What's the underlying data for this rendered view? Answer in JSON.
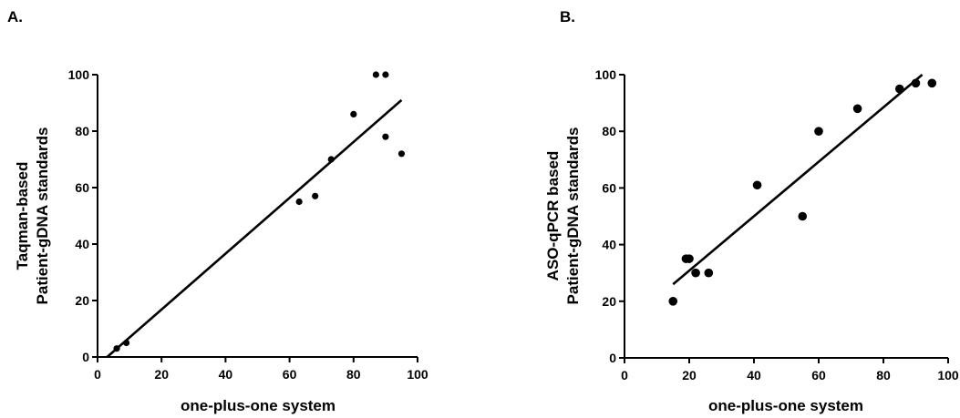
{
  "chart_data": [
    {
      "type": "scatter",
      "panel_label": "A.",
      "xlabel": "one-plus-one system",
      "ylabel_lines": [
        "Taqman-based",
        "Patient-gDNA standards"
      ],
      "xlim": [
        0,
        100
      ],
      "ylim": [
        0,
        100
      ],
      "xticks": [
        "0",
        "20",
        "40",
        "60",
        "80",
        "100"
      ],
      "yticks": [
        "0",
        "20",
        "40",
        "60",
        "80",
        "100"
      ],
      "grid": false,
      "legend": "none",
      "marker_color": "#000000",
      "points": [
        {
          "x": 6,
          "y": 3
        },
        {
          "x": 9,
          "y": 5
        },
        {
          "x": 63,
          "y": 55
        },
        {
          "x": 68,
          "y": 57
        },
        {
          "x": 73,
          "y": 70
        },
        {
          "x": 80,
          "y": 86
        },
        {
          "x": 87,
          "y": 100
        },
        {
          "x": 90,
          "y": 100
        },
        {
          "x": 90,
          "y": 78
        },
        {
          "x": 95,
          "y": 72
        }
      ],
      "fit_line": {
        "x": [
          3,
          95
        ],
        "y": [
          0,
          91
        ]
      }
    },
    {
      "type": "scatter",
      "panel_label": "B.",
      "xlabel": "one-plus-one system",
      "ylabel_lines": [
        "ASO-qPCR based",
        "Patient-gDNA standards"
      ],
      "xlim": [
        0,
        100
      ],
      "ylim": [
        0,
        100
      ],
      "xticks": [
        "0",
        "20",
        "40",
        "60",
        "80",
        "100"
      ],
      "yticks": [
        "0",
        "20",
        "40",
        "60",
        "80",
        "100"
      ],
      "grid": false,
      "legend": "none",
      "marker_color": "#000000",
      "points": [
        {
          "x": 15,
          "y": 20
        },
        {
          "x": 19,
          "y": 35
        },
        {
          "x": 20,
          "y": 35
        },
        {
          "x": 22,
          "y": 30
        },
        {
          "x": 26,
          "y": 30
        },
        {
          "x": 41,
          "y": 61
        },
        {
          "x": 55,
          "y": 50
        },
        {
          "x": 60,
          "y": 80
        },
        {
          "x": 72,
          "y": 88
        },
        {
          "x": 85,
          "y": 95
        },
        {
          "x": 90,
          "y": 97
        },
        {
          "x": 95,
          "y": 97
        }
      ],
      "fit_line": {
        "x": [
          15,
          92
        ],
        "y": [
          26,
          100
        ]
      }
    }
  ]
}
